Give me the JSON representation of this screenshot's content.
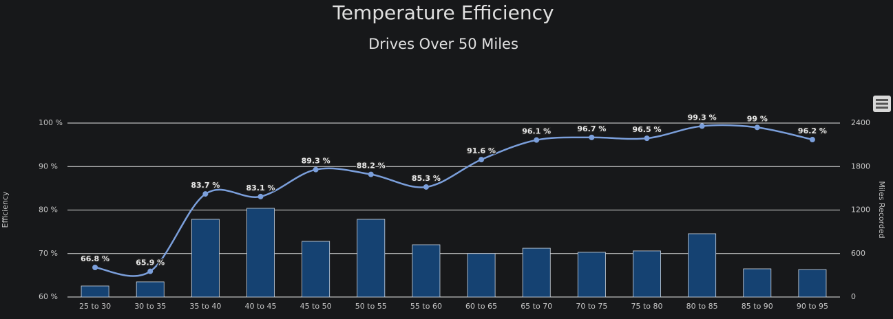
{
  "chart_data": {
    "type": "combo",
    "title": "Temperature Efficiency",
    "subtitle": "Drives Over 50 Miles",
    "y_label": "Efficiency",
    "y2_label": "Miles Recorded",
    "categories": [
      "25 to 30",
      "30 to 35",
      "35 to 40",
      "40 to 45",
      "45 to 50",
      "50 to 55",
      "55 to 60",
      "60 to 65",
      "65 to 70",
      "70 to 75",
      "75 to 80",
      "80 to 85",
      "85 to 90",
      "90 to 95"
    ],
    "ylim": [
      60,
      100
    ],
    "yticks": [
      {
        "value": 60,
        "label": "60 %"
      },
      {
        "value": 70,
        "label": "70 %"
      },
      {
        "value": 80,
        "label": "80 %"
      },
      {
        "value": 90,
        "label": "90 %"
      },
      {
        "value": 100,
        "label": "100 %"
      }
    ],
    "y2lim": [
      0,
      2400
    ],
    "y2ticks": [
      0,
      600,
      1200,
      1800,
      2400
    ],
    "grid": true,
    "series": [
      {
        "name": "Miles Recorded",
        "type": "bar",
        "axis": "y2",
        "color": "#154272",
        "values": [
          152,
          209,
          1072,
          1224,
          768,
          1072,
          721,
          600,
          673,
          617,
          636,
          873,
          389,
          379
        ]
      },
      {
        "name": "Efficiency",
        "type": "line",
        "color": "#7b9fdb",
        "values": [
          66.8,
          65.9,
          83.7,
          83.1,
          89.3,
          88.2,
          85.3,
          91.6,
          96.1,
          96.7,
          96.5,
          99.3,
          99,
          96.2
        ],
        "value_labels": [
          "66.8 %",
          "65.9 %",
          "83.7 %",
          "83.1 %",
          "89.3 %",
          "88.2 %",
          "85.3 %",
          "91.6 %",
          "96.1 %",
          "96.7 %",
          "96.5 %",
          "99.3 %",
          "99 %",
          "96.2 %"
        ]
      }
    ]
  }
}
